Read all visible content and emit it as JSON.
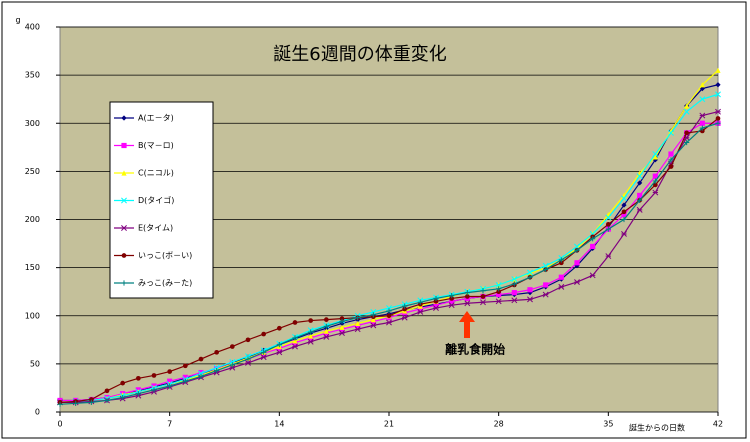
{
  "chart_data": {
    "type": "line",
    "title": "誕生6週間の体重変化",
    "ylabel": "g",
    "xlabel": "誕生からの日数",
    "annotations": [
      {
        "text": "離乳食開始",
        "x": 26.5
      }
    ],
    "x": [
      0,
      1,
      2,
      3,
      4,
      5,
      6,
      7,
      8,
      9,
      10,
      11,
      12,
      13,
      14,
      15,
      16,
      17,
      18,
      19,
      20,
      21,
      22,
      23,
      24,
      25,
      26,
      27,
      28,
      29,
      30,
      31,
      32,
      33,
      34,
      35,
      36,
      37,
      38,
      39,
      40,
      41,
      42
    ],
    "xlim": [
      0,
      42
    ],
    "xticks": [
      0,
      7,
      14,
      21,
      28,
      35,
      42
    ],
    "ylim": [
      0,
      400
    ],
    "yticks": [
      0,
      50,
      100,
      150,
      200,
      250,
      300,
      350,
      400
    ],
    "grid": true,
    "series": [
      {
        "name": "A(エ－タ)",
        "color": "#000080",
        "marker": "diamond",
        "values": [
          12,
          12,
          13,
          15,
          18,
          22,
          26,
          30,
          35,
          40,
          45,
          51,
          57,
          64,
          70,
          76,
          82,
          87,
          92,
          96,
          99,
          102,
          106,
          109,
          112,
          115,
          118,
          120,
          121,
          122,
          124,
          130,
          138,
          152,
          170,
          192,
          215,
          238,
          262,
          292,
          318,
          336,
          340
        ]
      },
      {
        "name": "B(マ－ロ)",
        "color": "#ff00ff",
        "marker": "square",
        "values": [
          12,
          12,
          13,
          15,
          19,
          23,
          27,
          32,
          36,
          41,
          45,
          50,
          55,
          61,
          66,
          72,
          77,
          82,
          86,
          90,
          94,
          98,
          103,
          107,
          111,
          115,
          118,
          120,
          122,
          124,
          127,
          132,
          140,
          155,
          172,
          190,
          205,
          225,
          245,
          268,
          290,
          300,
          300
        ]
      },
      {
        "name": "C(ニコル)",
        "color": "#ffff00",
        "marker": "triangle",
        "values": [
          10,
          11,
          12,
          14,
          18,
          21,
          25,
          29,
          33,
          38,
          44,
          50,
          56,
          62,
          68,
          74,
          79,
          84,
          88,
          92,
          96,
          100,
          105,
          110,
          115,
          120,
          125,
          128,
          132,
          138,
          144,
          150,
          158,
          170,
          185,
          205,
          225,
          248,
          265,
          292,
          318,
          340,
          355
        ]
      },
      {
        "name": "D(タイゴ)",
        "color": "#00ffff",
        "marker": "cross",
        "values": [
          10,
          11,
          12,
          14,
          17,
          21,
          25,
          29,
          34,
          40,
          46,
          52,
          58,
          64,
          71,
          78,
          85,
          90,
          95,
          100,
          104,
          108,
          112,
          116,
          119,
          122,
          125,
          128,
          132,
          138,
          145,
          152,
          160,
          172,
          185,
          202,
          222,
          245,
          268,
          290,
          312,
          325,
          330
        ]
      },
      {
        "name": "E(タイム)",
        "color": "#800080",
        "marker": "star",
        "values": [
          10,
          10,
          11,
          12,
          14,
          17,
          21,
          26,
          31,
          36,
          41,
          46,
          51,
          57,
          62,
          68,
          73,
          78,
          82,
          86,
          90,
          93,
          98,
          104,
          108,
          111,
          113,
          114,
          115,
          116,
          117,
          122,
          130,
          135,
          142,
          162,
          185,
          210,
          228,
          258,
          285,
          308,
          312
        ]
      },
      {
        "name": "いっこ(ボ－い)",
        "color": "#800000",
        "marker": "circle",
        "values": [
          10,
          11,
          13,
          22,
          30,
          35,
          38,
          42,
          48,
          55,
          62,
          68,
          75,
          81,
          87,
          93,
          95,
          96,
          97,
          98,
          99,
          100,
          107,
          112,
          115,
          118,
          120,
          120,
          125,
          132,
          140,
          148,
          155,
          168,
          182,
          195,
          208,
          220,
          236,
          255,
          290,
          292,
          305
        ]
      },
      {
        "name": "みっこ(み－た)",
        "color": "#008080",
        "marker": "plus",
        "values": [
          8,
          9,
          10,
          12,
          15,
          19,
          23,
          27,
          32,
          37,
          43,
          49,
          55,
          62,
          70,
          77,
          83,
          89,
          94,
          98,
          101,
          105,
          110,
          114,
          118,
          121,
          124,
          126,
          128,
          133,
          140,
          148,
          158,
          168,
          180,
          190,
          200,
          220,
          240,
          262,
          280,
          295,
          300
        ]
      }
    ]
  }
}
